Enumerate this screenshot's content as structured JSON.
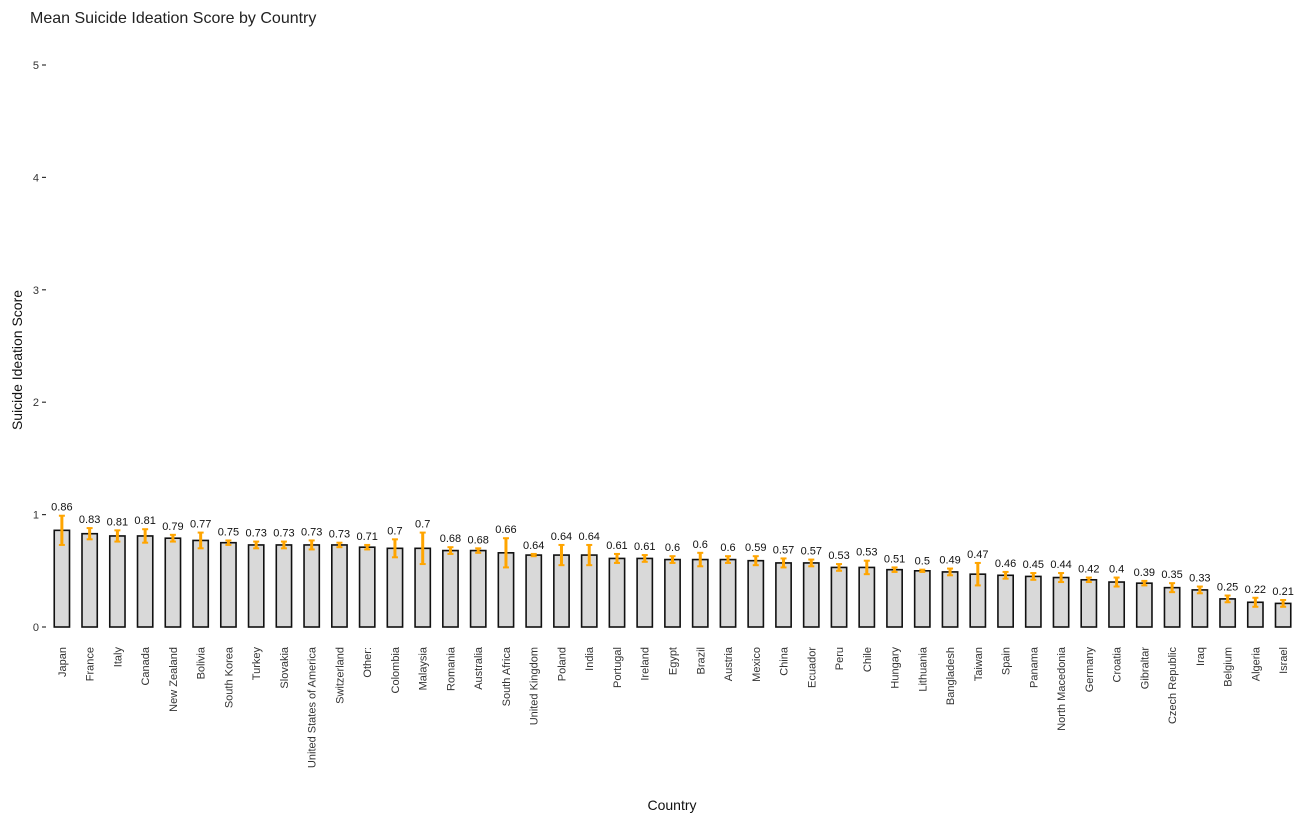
{
  "chart_data": {
    "type": "bar",
    "title": "Mean Suicide Ideation Score by Country",
    "xlabel": "Country",
    "ylabel": "Suicide Ideation Score",
    "ylim": [
      0,
      5
    ],
    "yticks": [
      0,
      1,
      2,
      3,
      4,
      5
    ],
    "grid": false,
    "categories": [
      "Japan",
      "France",
      "Italy",
      "Canada",
      "New Zealand",
      "Bolivia",
      "South Korea",
      "Turkey",
      "Slovakia",
      "United States of America",
      "Switzerland",
      "Other:",
      "Colombia",
      "Malaysia",
      "Romania",
      "Australia",
      "South Africa",
      "United Kingdom",
      "Poland",
      "India",
      "Portugal",
      "Ireland",
      "Egypt",
      "Brazil",
      "Austria",
      "Mexico",
      "China",
      "Ecuador",
      "Peru",
      "Chile",
      "Hungary",
      "Lithuania",
      "Bangladesh",
      "Taiwan",
      "Spain",
      "Panama",
      "North Macedonia",
      "Germany",
      "Croatia",
      "Gibraltar",
      "Czech Republic",
      "Iraq",
      "Belgium",
      "Algeria",
      "Israel"
    ],
    "values": [
      0.86,
      0.83,
      0.81,
      0.81,
      0.79,
      0.77,
      0.75,
      0.73,
      0.73,
      0.73,
      0.73,
      0.71,
      0.7,
      0.7,
      0.68,
      0.68,
      0.66,
      0.64,
      0.64,
      0.64,
      0.61,
      0.61,
      0.6,
      0.6,
      0.6,
      0.59,
      0.57,
      0.57,
      0.53,
      0.53,
      0.51,
      0.5,
      0.49,
      0.47,
      0.46,
      0.45,
      0.44,
      0.42,
      0.4,
      0.39,
      0.35,
      0.33,
      0.25,
      0.22,
      0.21
    ],
    "data_labels": [
      "0.86",
      "0.83",
      "0.81",
      "0.81",
      "0.79",
      "0.77",
      "0.75",
      "0.73",
      "0.73",
      "0.73",
      "0.73",
      "0.71",
      "0.7",
      "0.7",
      "0.68",
      "0.68",
      "0.66",
      "0.64",
      "0.64",
      "0.64",
      "0.61",
      "0.61",
      "0.6",
      "0.6",
      "0.6",
      "0.59",
      "0.57",
      "0.57",
      "0.53",
      "0.53",
      "0.51",
      "0.5",
      "0.49",
      "0.47",
      "0.46",
      "0.45",
      "0.44",
      "0.42",
      "0.4",
      "0.39",
      "0.35",
      "0.33",
      "0.25",
      "0.22",
      "0.21"
    ],
    "error_half": [
      0.13,
      0.05,
      0.05,
      0.06,
      0.03,
      0.07,
      0.02,
      0.03,
      0.03,
      0.04,
      0.02,
      0.02,
      0.08,
      0.14,
      0.03,
      0.02,
      0.13,
      0.01,
      0.09,
      0.09,
      0.04,
      0.03,
      0.03,
      0.06,
      0.03,
      0.04,
      0.04,
      0.03,
      0.03,
      0.06,
      0.02,
      0.01,
      0.03,
      0.1,
      0.03,
      0.03,
      0.04,
      0.02,
      0.04,
      0.02,
      0.04,
      0.03,
      0.03,
      0.04,
      0.03
    ],
    "colors": {
      "bar_fill": "#d9d9d9",
      "bar_stroke": "#111111",
      "error_bar": "#ffa500"
    }
  }
}
